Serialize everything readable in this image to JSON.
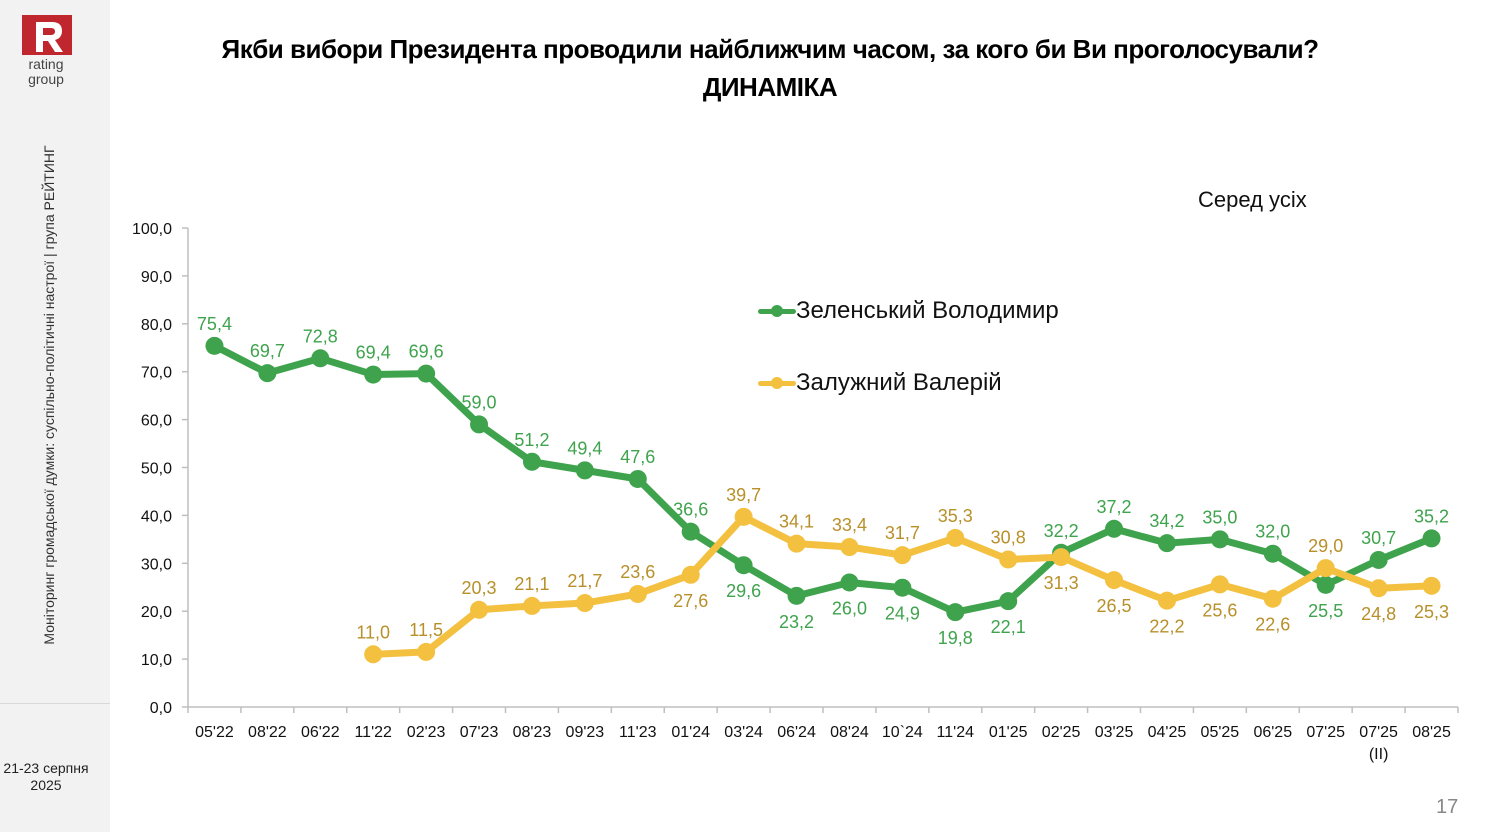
{
  "branding": {
    "logo_letter": "R",
    "logo_line1": "rating",
    "logo_line2": "group",
    "brand_color": "#c0262d"
  },
  "sidebar": {
    "vertical_caption": "Моніторинг громадської думки: суспільно-політичні настрої | група РЕЙТИНГ",
    "date_line1": "21-23 серпня",
    "date_line2": "2025"
  },
  "title_line1": "Якби вибори Президента проводили найближчим часом, за кого би Ви проголосували?",
  "title_line2": "ДИНАМІКА",
  "subset_label": "Серед усіх",
  "page_number": "17",
  "chart_data": {
    "type": "line",
    "title": "Якби вибори Президента проводили найближчим часом, за кого би Ви проголосували? ДИНАМІКА",
    "subtitle": "Серед усіх",
    "xlabel": "",
    "ylabel": "",
    "ylim": [
      0,
      100
    ],
    "y_ticks": [
      "0,0",
      "10,0",
      "20,0",
      "30,0",
      "40,0",
      "50,0",
      "60,0",
      "70,0",
      "80,0",
      "90,0",
      "100,0"
    ],
    "grid": false,
    "legend_position": "top-center",
    "categories": [
      "05'22",
      "08'22",
      "06'22",
      "11'22",
      "02'23",
      "07'23",
      "08'23",
      "09'23",
      "11'23",
      "01'24",
      "03'24",
      "06'24",
      "08'24",
      "10`24",
      "11'24",
      "01'25",
      "02'25",
      "03'25",
      "04'25",
      "05'25",
      "06'25",
      "07'25",
      "07'25 (II)",
      "08'25"
    ],
    "category_sublabels": [
      "",
      "",
      "",
      "",
      "",
      "",
      "",
      "",
      "",
      "",
      "",
      "",
      "",
      "",
      "",
      "",
      "",
      "",
      "",
      "",
      "",
      "",
      "(II)",
      ""
    ],
    "series": [
      {
        "name": "Зеленський Володимир",
        "color": "#3fa34d",
        "label_color": "#3fa34d",
        "values": [
          75.4,
          69.7,
          72.8,
          69.4,
          69.6,
          59.0,
          51.2,
          49.4,
          47.6,
          36.6,
          29.6,
          23.2,
          26.0,
          24.9,
          19.8,
          22.1,
          32.2,
          37.2,
          34.2,
          35.0,
          32.0,
          25.5,
          30.7,
          35.2
        ],
        "labels": [
          "75,4",
          "69,7",
          "72,8",
          "69,4",
          "69,6",
          "59,0",
          "51,2",
          "49,4",
          "47,6",
          "36,6",
          "29,6",
          "23,2",
          "26,0",
          "24,9",
          "19,8",
          "22,1",
          "32,2",
          "37,2",
          "34,2",
          "35,0",
          "32,0",
          "25,5",
          "30,7",
          "35,2"
        ],
        "label_pos": [
          "above",
          "above",
          "above",
          "above",
          "above",
          "above",
          "above",
          "above",
          "above",
          "above",
          "below",
          "below",
          "below",
          "below",
          "below",
          "below",
          "above",
          "above",
          "above",
          "above",
          "above",
          "below",
          "above",
          "above"
        ]
      },
      {
        "name": "Залужний Валерій",
        "color": "#f3c03f",
        "label_color": "#b8902a",
        "values": [
          null,
          null,
          null,
          11.0,
          11.5,
          20.3,
          21.1,
          21.7,
          23.6,
          27.6,
          39.7,
          34.1,
          33.4,
          31.7,
          35.3,
          30.8,
          31.3,
          26.5,
          22.2,
          25.6,
          22.6,
          29.0,
          24.8,
          25.3
        ],
        "labels": [
          null,
          null,
          null,
          "11,0",
          "11,5",
          "20,3",
          "21,1",
          "21,7",
          "23,6",
          "27,6",
          "39,7",
          "34,1",
          "33,4",
          "31,7",
          "35,3",
          "30,8",
          "31,3",
          "26,5",
          "22,2",
          "25,6",
          "22,6",
          "29,0",
          "24,8",
          "25,3"
        ],
        "label_pos": [
          null,
          null,
          null,
          "above",
          "above",
          "above",
          "above",
          "above",
          "above",
          "below",
          "above",
          "above",
          "above",
          "above",
          "above",
          "above",
          "below",
          "below",
          "below",
          "below",
          "below",
          "above",
          "below",
          "below"
        ]
      }
    ]
  }
}
